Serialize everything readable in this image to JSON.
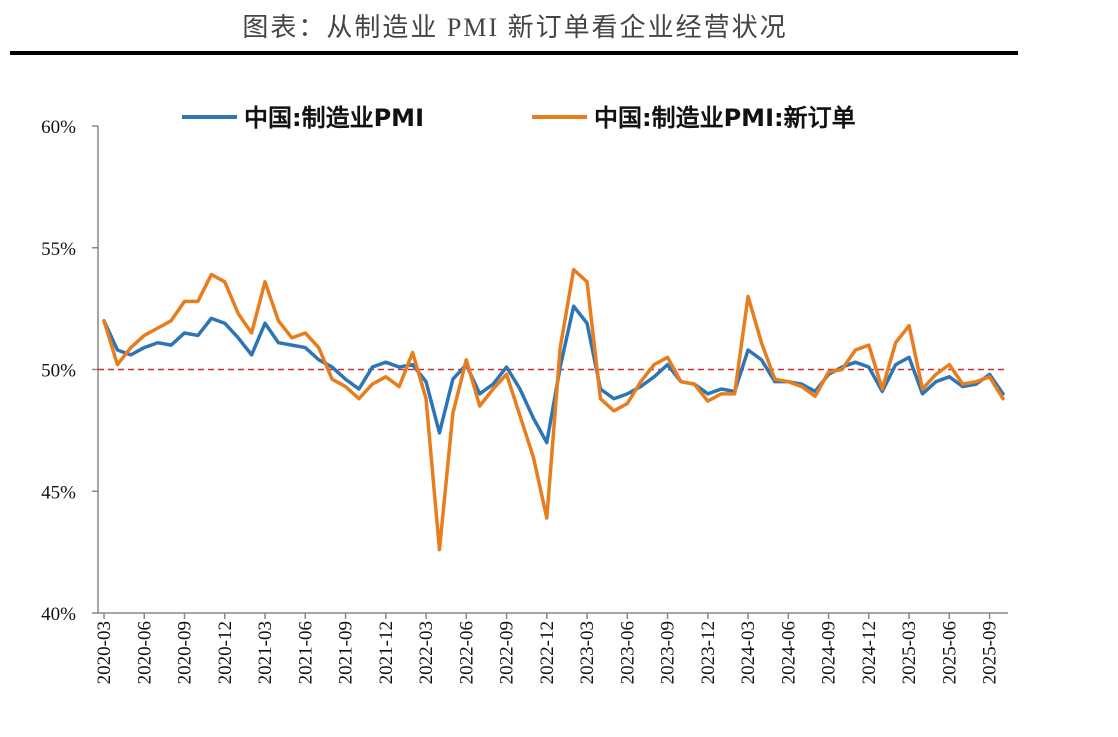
{
  "chart_data": {
    "type": "line",
    "title": "图表：从制造业 PMI 新订单看企业经营状况",
    "categories": [
      "2020-03",
      null,
      null,
      "2020-06",
      null,
      null,
      "2020-09",
      null,
      null,
      "2020-12",
      null,
      null,
      "2021-03",
      null,
      null,
      "2021-06",
      null,
      null,
      "2021-09",
      null,
      null,
      "2021-12",
      null,
      null,
      "2022-03",
      null,
      null,
      "2022-06",
      null,
      null,
      "2022-09",
      null,
      null,
      "2022-12",
      null,
      null,
      "2023-03",
      null,
      null,
      "2023-06",
      null,
      null,
      "2023-09",
      null,
      null,
      "2023-12",
      null,
      null,
      "2024-03",
      null,
      null,
      "2024-06",
      null,
      null,
      "2024-09",
      null,
      null,
      "2024-12",
      null,
      null,
      "2025-03",
      null,
      null,
      "2025-06",
      null,
      null,
      "2025-09",
      null
    ],
    "series": [
      {
        "name": "中国:制造业PMI",
        "color": "#2e75b6",
        "values": [
          52.0,
          50.8,
          50.6,
          50.9,
          51.1,
          51.0,
          51.5,
          51.4,
          52.1,
          51.9,
          51.3,
          50.6,
          51.9,
          51.1,
          51.0,
          50.9,
          50.4,
          50.1,
          49.6,
          49.2,
          50.1,
          50.3,
          50.1,
          50.2,
          49.5,
          47.4,
          49.6,
          50.2,
          49.0,
          49.4,
          50.1,
          49.2,
          48.0,
          47.0,
          50.1,
          52.6,
          51.9,
          49.2,
          48.8,
          49.0,
          49.3,
          49.7,
          50.2,
          49.5,
          49.4,
          49.0,
          49.2,
          49.1,
          50.8,
          50.4,
          49.5,
          49.5,
          49.4,
          49.1,
          49.8,
          50.1,
          50.3,
          50.1,
          49.1,
          50.2,
          50.5,
          49.0,
          49.5,
          49.7,
          49.3,
          49.4,
          49.8,
          49.0
        ]
      },
      {
        "name": "中国:制造业PMI:新订单",
        "color": "#e87d1e",
        "values": [
          52.0,
          50.2,
          50.9,
          51.4,
          51.7,
          52.0,
          52.8,
          52.8,
          53.9,
          53.6,
          52.3,
          51.5,
          53.6,
          52.0,
          51.3,
          51.5,
          50.9,
          49.6,
          49.3,
          48.8,
          49.4,
          49.7,
          49.3,
          50.7,
          48.8,
          42.6,
          48.2,
          50.4,
          48.5,
          49.2,
          49.8,
          48.1,
          46.4,
          43.9,
          50.9,
          54.1,
          53.6,
          48.8,
          48.3,
          48.6,
          49.5,
          50.2,
          50.5,
          49.5,
          49.4,
          48.7,
          49.0,
          49.0,
          53.0,
          51.1,
          49.6,
          49.5,
          49.3,
          48.9,
          49.9,
          50.0,
          50.8,
          51.0,
          49.2,
          51.1,
          51.8,
          49.2,
          49.8,
          50.2,
          49.4,
          49.5,
          49.7,
          48.8
        ]
      }
    ],
    "ylim": [
      40,
      60
    ],
    "yticks": [
      {
        "value": 40,
        "label": "40%"
      },
      {
        "value": 45,
        "label": "45%"
      },
      {
        "value": 50,
        "label": "50%"
      },
      {
        "value": 55,
        "label": "55%"
      },
      {
        "value": 60,
        "label": "60%"
      }
    ],
    "reference_line": 50,
    "reference_color": "#c0313a",
    "grid": false
  }
}
